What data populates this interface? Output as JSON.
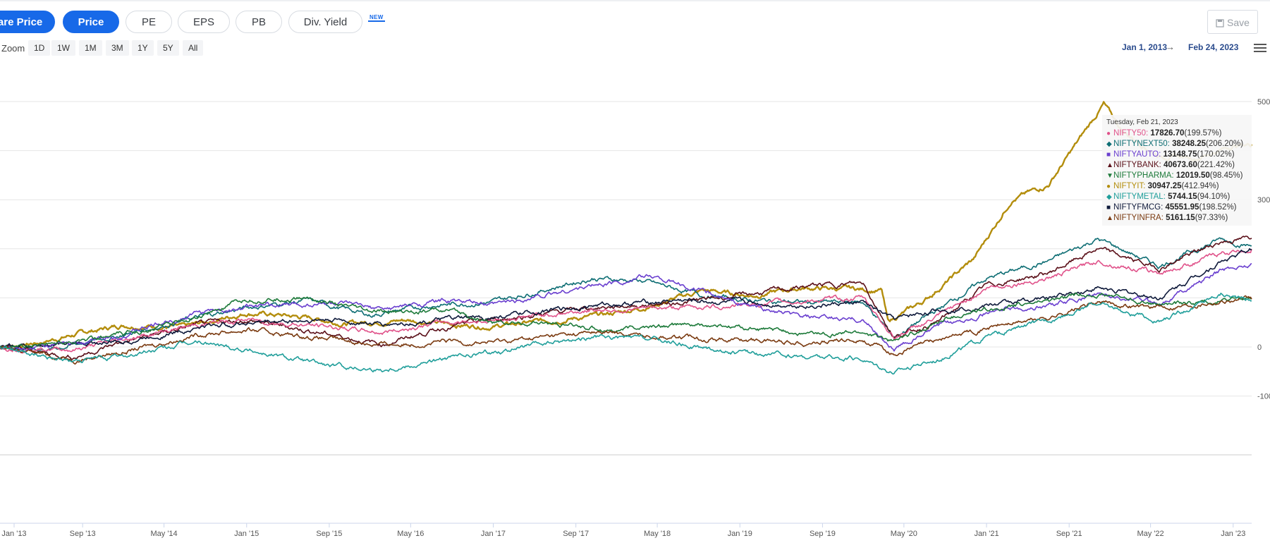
{
  "toolbar": {
    "tabs": [
      {
        "label": "Share Price",
        "active": true
      },
      {
        "label": "Price",
        "active": true
      },
      {
        "label": "PE",
        "active": false
      },
      {
        "label": "EPS",
        "active": false
      },
      {
        "label": "PB",
        "active": false
      },
      {
        "label": "Div. Yield",
        "active": false
      }
    ],
    "new_badge": "NEW",
    "save_label": "Save",
    "accent": "#1769e8"
  },
  "zoom": {
    "label": "Zoom",
    "buttons": [
      "1D",
      "1W",
      "1M",
      "3M",
      "1Y",
      "5Y",
      "All"
    ]
  },
  "range": {
    "from": "Jan 1, 2013",
    "to": "Feb 24, 2023",
    "arrow": "→"
  },
  "chart_data": {
    "type": "line",
    "x_ticks": [
      "Jan '13",
      "Sep '13",
      "May '14",
      "Jan '15",
      "Sep '15",
      "May '16",
      "Jan '17",
      "Sep '17",
      "May '18",
      "Jan '19",
      "Sep '19",
      "May '20",
      "Jan '21",
      "Sep '21",
      "May '22",
      "Jan '23"
    ],
    "y_ticks": [
      "500",
      "300",
      "0",
      "-100"
    ],
    "y_range": [
      -100,
      560
    ],
    "x_range": [
      2013.0,
      2023.15
    ],
    "series": [
      {
        "name": "NIFTYIT",
        "color": "#b38d0c",
        "points": [
          [
            2013.0,
            0
          ],
          [
            2013.3,
            8
          ],
          [
            2013.6,
            25
          ],
          [
            2014.0,
            45
          ],
          [
            2014.5,
            40
          ],
          [
            2015.0,
            70
          ],
          [
            2015.5,
            60
          ],
          [
            2015.8,
            48
          ],
          [
            2016.3,
            55
          ],
          [
            2016.7,
            45
          ],
          [
            2017.0,
            42
          ],
          [
            2017.5,
            55
          ],
          [
            2017.9,
            65
          ],
          [
            2018.3,
            85
          ],
          [
            2018.7,
            115
          ],
          [
            2019.1,
            105
          ],
          [
            2019.5,
            120
          ],
          [
            2019.9,
            118
          ],
          [
            2020.15,
            115
          ],
          [
            2020.2,
            50
          ],
          [
            2020.5,
            95
          ],
          [
            2020.9,
            180
          ],
          [
            2021.2,
            300
          ],
          [
            2021.5,
            330
          ],
          [
            2021.8,
            440
          ],
          [
            2021.95,
            495
          ],
          [
            2022.1,
            440
          ],
          [
            2022.4,
            390
          ],
          [
            2022.7,
            385
          ],
          [
            2023.0,
            410
          ],
          [
            2023.15,
            412.94
          ]
        ]
      },
      {
        "name": "NIFTYNEXT50",
        "color": "#0e6e74",
        "points": [
          [
            2013.0,
            0
          ],
          [
            2013.4,
            -5
          ],
          [
            2014.0,
            25
          ],
          [
            2014.5,
            55
          ],
          [
            2015.0,
            80
          ],
          [
            2015.5,
            95
          ],
          [
            2016.0,
            65
          ],
          [
            2016.5,
            85
          ],
          [
            2017.0,
            92
          ],
          [
            2017.8,
            140
          ],
          [
            2018.2,
            135
          ],
          [
            2018.7,
            105
          ],
          [
            2019.1,
            95
          ],
          [
            2019.6,
            90
          ],
          [
            2020.0,
            92
          ],
          [
            2020.25,
            20
          ],
          [
            2020.6,
            75
          ],
          [
            2021.0,
            140
          ],
          [
            2021.5,
            175
          ],
          [
            2021.9,
            220
          ],
          [
            2022.4,
            165
          ],
          [
            2022.9,
            220
          ],
          [
            2023.15,
            206.2
          ]
        ]
      },
      {
        "name": "NIFTYBANK",
        "color": "#5a0f18",
        "points": [
          [
            2013.0,
            0
          ],
          [
            2013.6,
            -20
          ],
          [
            2014.0,
            10
          ],
          [
            2014.6,
            45
          ],
          [
            2015.0,
            55
          ],
          [
            2015.7,
            25
          ],
          [
            2016.1,
            5
          ],
          [
            2016.6,
            40
          ],
          [
            2017.0,
            55
          ],
          [
            2017.8,
            80
          ],
          [
            2018.5,
            90
          ],
          [
            2019.0,
            105
          ],
          [
            2019.6,
            125
          ],
          [
            2020.0,
            130
          ],
          [
            2020.25,
            20
          ],
          [
            2020.6,
            50
          ],
          [
            2021.0,
            125
          ],
          [
            2021.5,
            150
          ],
          [
            2021.9,
            200
          ],
          [
            2022.4,
            160
          ],
          [
            2022.9,
            215
          ],
          [
            2023.15,
            221.42
          ]
        ]
      },
      {
        "name": "NIFTY50",
        "color": "#e0528a",
        "points": [
          [
            2013.0,
            0
          ],
          [
            2013.6,
            -5
          ],
          [
            2014.0,
            15
          ],
          [
            2014.6,
            45
          ],
          [
            2015.0,
            55
          ],
          [
            2015.7,
            40
          ],
          [
            2016.1,
            30
          ],
          [
            2016.6,
            50
          ],
          [
            2017.0,
            55
          ],
          [
            2017.8,
            75
          ],
          [
            2018.5,
            80
          ],
          [
            2019.0,
            85
          ],
          [
            2019.6,
            95
          ],
          [
            2020.0,
            100
          ],
          [
            2020.25,
            20
          ],
          [
            2020.6,
            60
          ],
          [
            2021.0,
            120
          ],
          [
            2021.5,
            140
          ],
          [
            2021.9,
            175
          ],
          [
            2022.4,
            150
          ],
          [
            2022.9,
            190
          ],
          [
            2023.15,
            199.57
          ]
        ]
      },
      {
        "name": "NIFTYFMCG",
        "color": "#0f1a3b",
        "points": [
          [
            2013.0,
            0
          ],
          [
            2013.6,
            5
          ],
          [
            2014.0,
            10
          ],
          [
            2014.6,
            40
          ],
          [
            2015.0,
            50
          ],
          [
            2015.7,
            55
          ],
          [
            2016.1,
            45
          ],
          [
            2016.6,
            55
          ],
          [
            2017.0,
            60
          ],
          [
            2017.8,
            85
          ],
          [
            2018.5,
            95
          ],
          [
            2019.0,
            90
          ],
          [
            2019.6,
            85
          ],
          [
            2020.0,
            90
          ],
          [
            2020.25,
            55
          ],
          [
            2020.6,
            75
          ],
          [
            2021.0,
            85
          ],
          [
            2021.5,
            100
          ],
          [
            2021.9,
            120
          ],
          [
            2022.4,
            100
          ],
          [
            2022.9,
            175
          ],
          [
            2023.15,
            198.52
          ]
        ]
      },
      {
        "name": "NIFTYAUTO",
        "color": "#6a3fcf",
        "points": [
          [
            2013.0,
            0
          ],
          [
            2013.6,
            5
          ],
          [
            2014.0,
            25
          ],
          [
            2014.6,
            70
          ],
          [
            2015.0,
            80
          ],
          [
            2015.7,
            90
          ],
          [
            2016.1,
            75
          ],
          [
            2016.6,
            95
          ],
          [
            2017.0,
            85
          ],
          [
            2017.8,
            125
          ],
          [
            2018.3,
            145
          ],
          [
            2018.9,
            95
          ],
          [
            2019.5,
            60
          ],
          [
            2020.0,
            55
          ],
          [
            2020.25,
            -5
          ],
          [
            2020.6,
            40
          ],
          [
            2021.0,
            70
          ],
          [
            2021.5,
            85
          ],
          [
            2021.9,
            105
          ],
          [
            2022.4,
            90
          ],
          [
            2022.9,
            155
          ],
          [
            2023.15,
            170.02
          ]
        ]
      },
      {
        "name": "NIFTYPHARMA",
        "color": "#1d7a3a",
        "points": [
          [
            2013.0,
            0
          ],
          [
            2013.5,
            10
          ],
          [
            2014.0,
            25
          ],
          [
            2014.6,
            60
          ],
          [
            2015.0,
            95
          ],
          [
            2015.5,
            100
          ],
          [
            2016.0,
            70
          ],
          [
            2016.6,
            75
          ],
          [
            2017.0,
            50
          ],
          [
            2017.5,
            45
          ],
          [
            2018.0,
            35
          ],
          [
            2018.5,
            45
          ],
          [
            2019.0,
            40
          ],
          [
            2019.6,
            25
          ],
          [
            2020.0,
            30
          ],
          [
            2020.25,
            10
          ],
          [
            2020.7,
            60
          ],
          [
            2021.0,
            75
          ],
          [
            2021.5,
            95
          ],
          [
            2021.9,
            110
          ],
          [
            2022.4,
            85
          ],
          [
            2022.9,
            95
          ],
          [
            2023.15,
            98.45
          ]
        ]
      },
      {
        "name": "NIFTYINFRA",
        "color": "#7a3a10",
        "points": [
          [
            2013.0,
            0
          ],
          [
            2013.6,
            -25
          ],
          [
            2014.0,
            -10
          ],
          [
            2014.6,
            25
          ],
          [
            2015.0,
            35
          ],
          [
            2015.7,
            15
          ],
          [
            2016.1,
            5
          ],
          [
            2016.6,
            10
          ],
          [
            2017.0,
            10
          ],
          [
            2017.8,
            30
          ],
          [
            2018.5,
            20
          ],
          [
            2019.0,
            15
          ],
          [
            2019.6,
            10
          ],
          [
            2020.0,
            15
          ],
          [
            2020.25,
            -15
          ],
          [
            2020.6,
            15
          ],
          [
            2021.0,
            40
          ],
          [
            2021.5,
            60
          ],
          [
            2021.9,
            90
          ],
          [
            2022.4,
            80
          ],
          [
            2022.9,
            95
          ],
          [
            2023.15,
            97.33
          ]
        ]
      },
      {
        "name": "NIFTYMETAL",
        "color": "#1f9e9a",
        "points": [
          [
            2013.0,
            0
          ],
          [
            2013.6,
            -30
          ],
          [
            2014.0,
            -20
          ],
          [
            2014.6,
            10
          ],
          [
            2015.0,
            -5
          ],
          [
            2015.7,
            -40
          ],
          [
            2016.1,
            -45
          ],
          [
            2016.6,
            -25
          ],
          [
            2017.0,
            -10
          ],
          [
            2017.8,
            20
          ],
          [
            2018.3,
            15
          ],
          [
            2018.9,
            -10
          ],
          [
            2019.5,
            -20
          ],
          [
            2020.0,
            -25
          ],
          [
            2020.25,
            -50
          ],
          [
            2020.6,
            -25
          ],
          [
            2021.0,
            20
          ],
          [
            2021.5,
            55
          ],
          [
            2021.9,
            90
          ],
          [
            2022.4,
            50
          ],
          [
            2022.9,
            110
          ],
          [
            2023.15,
            94.1
          ]
        ]
      }
    ]
  },
  "tooltip": {
    "date": "Tuesday, Feb 21, 2023",
    "rows": [
      {
        "symbol": "●",
        "name": "NIFTY50",
        "value": "17826.70",
        "pct": "(199.57%)",
        "color": "#e0528a"
      },
      {
        "symbol": "◆",
        "name": "NIFTYNEXT50",
        "value": "38248.25",
        "pct": "(206.20%)",
        "color": "#0e6e74"
      },
      {
        "symbol": "■",
        "name": "NIFTYAUTO",
        "value": "13148.75",
        "pct": "(170.02%)",
        "color": "#6a3fcf"
      },
      {
        "symbol": "▲",
        "name": "NIFTYBANK",
        "value": "40673.60",
        "pct": "(221.42%)",
        "color": "#5a0f18"
      },
      {
        "symbol": "▼",
        "name": "NIFTYPHARMA",
        "value": "12019.50",
        "pct": "(98.45%)",
        "color": "#1d7a3a"
      },
      {
        "symbol": "●",
        "name": "NIFTYIT",
        "value": "30947.25",
        "pct": "(412.94%)",
        "color": "#b38d0c"
      },
      {
        "symbol": "◆",
        "name": "NIFTYMETAL",
        "value": "5744.15",
        "pct": "(94.10%)",
        "color": "#1f9e9a"
      },
      {
        "symbol": "■",
        "name": "NIFTYFMCG",
        "value": "45551.95",
        "pct": "(198.52%)",
        "color": "#0f1a3b"
      },
      {
        "symbol": "▲",
        "name": "NIFTYINFRA",
        "value": "5161.15",
        "pct": "(97.33%)",
        "color": "#7a3a10"
      }
    ]
  }
}
